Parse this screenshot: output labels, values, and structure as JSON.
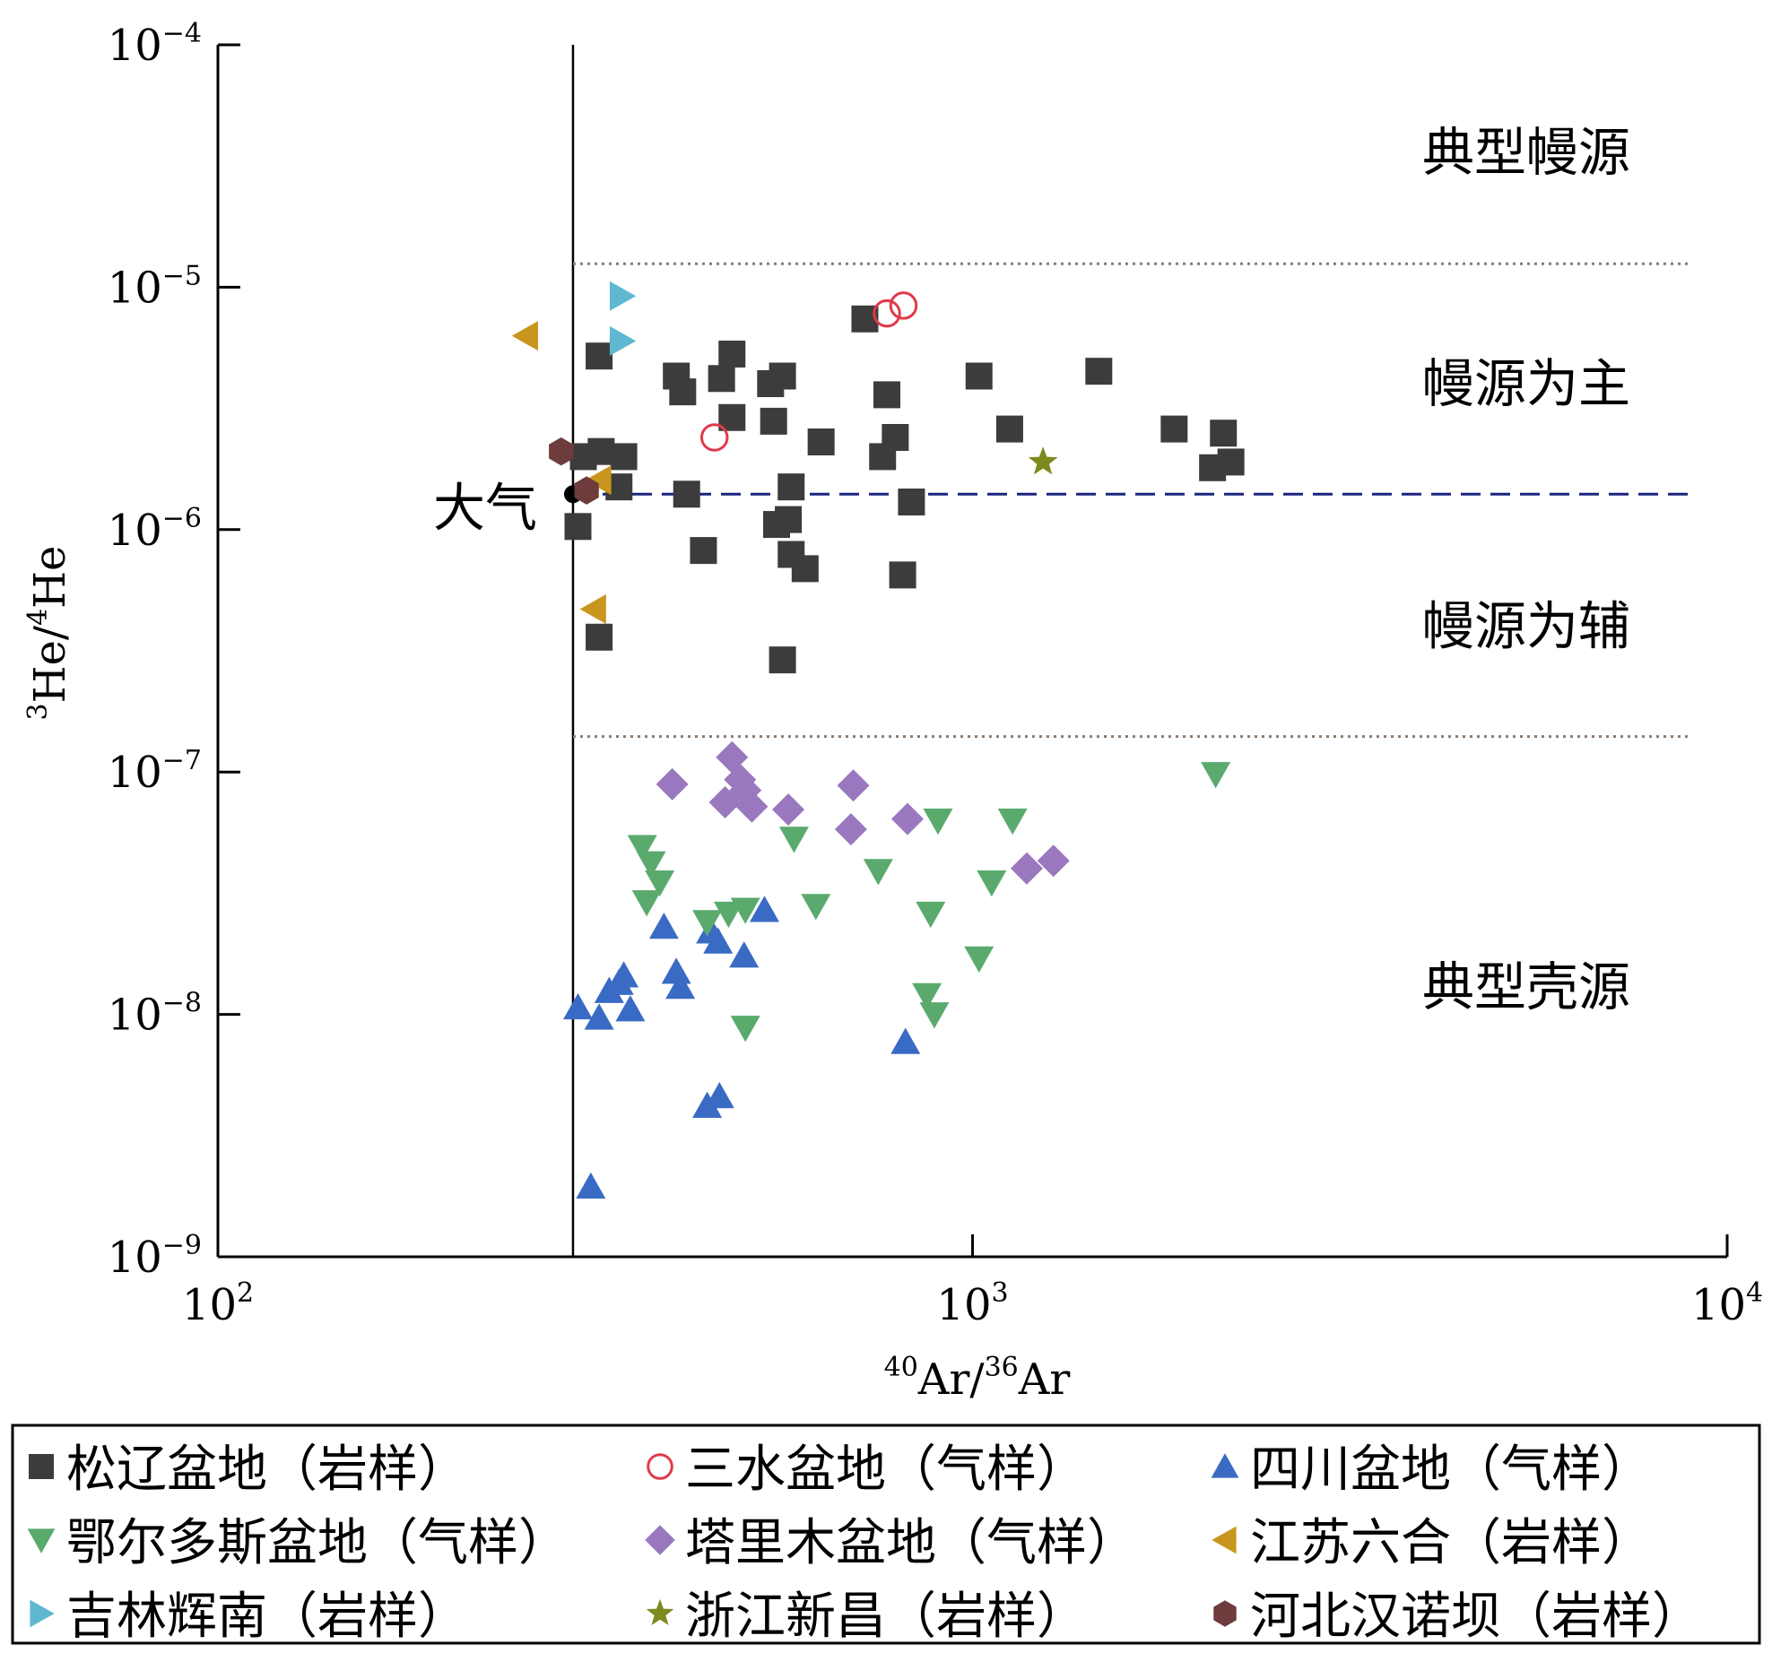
{
  "chart_data": {
    "type": "scatter",
    "x_axis": {
      "scale": "log",
      "range": [
        100,
        10000
      ],
      "tick_values": [
        100,
        1000,
        10000
      ],
      "tick_labels": [
        {
          "base": "10",
          "exp": "2"
        },
        {
          "base": "10",
          "exp": "3"
        },
        {
          "base": "10",
          "exp": "4"
        }
      ],
      "label": {
        "sup1": "40",
        "t1": "Ar/",
        "sup2": "36",
        "t2": "Ar"
      }
    },
    "y_axis": {
      "scale": "log",
      "range": [
        1e-09,
        0.0001
      ],
      "tick_values": [
        1e-09,
        1e-08,
        1e-07,
        1e-06,
        1e-05,
        0.0001
      ],
      "tick_labels": [
        {
          "base": "10",
          "exp": "−9"
        },
        {
          "base": "10",
          "exp": "−8"
        },
        {
          "base": "10",
          "exp": "−7"
        },
        {
          "base": "10",
          "exp": "−6"
        },
        {
          "base": "10",
          "exp": "−5"
        },
        {
          "base": "10",
          "exp": "−4"
        }
      ],
      "label": {
        "sup1": "3",
        "t1": "He/",
        "sup2": "4",
        "t2": "He"
      }
    },
    "reference_lines": {
      "air_vertical_x": 295.5,
      "upper_dotted_y": 1.25e-05,
      "lower_dotted_y": 1.4e-07,
      "air_dashed_y": 1.4e-06,
      "air_point": {
        "x": 295.5,
        "y": 1.4e-06,
        "label": "大气"
      }
    },
    "regions": [
      "典型幔源",
      "幔源为主",
      "幔源为辅",
      "典型壳源"
    ],
    "grid": false,
    "legend_position": "bottom",
    "series": [
      {
        "name": "松辽盆地（岩样）",
        "marker": "square",
        "color": "#3c3c3c",
        "points": [
          [
            320,
            5.2e-06
          ],
          [
            405,
            4.3e-06
          ],
          [
            413,
            3.7e-06
          ],
          [
            465,
            4.2e-06
          ],
          [
            480,
            5.3e-06
          ],
          [
            540,
            4e-06
          ],
          [
            560,
            4.3e-06
          ],
          [
            480,
            2.9e-06
          ],
          [
            545,
            2.8e-06
          ],
          [
            630,
            2.3e-06
          ],
          [
            720,
            7.4e-06
          ],
          [
            770,
            3.6e-06
          ],
          [
            790,
            2.4e-06
          ],
          [
            760,
            2e-06
          ],
          [
            1020,
            4.3e-06
          ],
          [
            1120,
            2.6e-06
          ],
          [
            1470,
            4.5e-06
          ],
          [
            1850,
            2.6e-06
          ],
          [
            2150,
            2.5e-06
          ],
          [
            2200,
            1.9e-06
          ],
          [
            2080,
            1.8e-06
          ],
          [
            305,
            2e-06
          ],
          [
            322,
            2.1e-06
          ],
          [
            345,
            2e-06
          ],
          [
            340,
            1.5e-06
          ],
          [
            418,
            1.4e-06
          ],
          [
            440,
            8.2e-07
          ],
          [
            575,
            1.5e-06
          ],
          [
            550,
            1.05e-06
          ],
          [
            570,
            1.1e-06
          ],
          [
            575,
            7.9e-07
          ],
          [
            600,
            6.9e-07
          ],
          [
            830,
            1.3e-06
          ],
          [
            808,
            6.5e-07
          ],
          [
            300,
            1.03e-06
          ],
          [
            320,
            3.6e-07
          ],
          [
            560,
            2.9e-07
          ]
        ]
      },
      {
        "name": "三水盆地（气样）",
        "marker": "circle-open",
        "color": "#e03a4a",
        "points": [
          [
            770,
            7.8e-06
          ],
          [
            810,
            8.4e-06
          ],
          [
            455,
            2.4e-06
          ]
        ]
      },
      {
        "name": "四川盆地（气样）",
        "marker": "triangle-up",
        "color": "#3a6bc4",
        "points": [
          [
            300,
            1.07e-08
          ],
          [
            330,
            1.25e-08
          ],
          [
            320,
            9.7e-09
          ],
          [
            345,
            1.45e-08
          ],
          [
            340,
            1.35e-08
          ],
          [
            352,
            1.05e-08
          ],
          [
            390,
            2.3e-08
          ],
          [
            405,
            1.5e-08
          ],
          [
            410,
            1.3e-08
          ],
          [
            450,
            2.2e-08
          ],
          [
            460,
            2e-08
          ],
          [
            498,
            1.75e-08
          ],
          [
            530,
            2.7e-08
          ],
          [
            815,
            7.7e-09
          ],
          [
            445,
            4.2e-09
          ],
          [
            462,
            4.6e-09
          ],
          [
            312,
            1.95e-09
          ]
        ]
      },
      {
        "name": "鄂尔多斯盆地（气样）",
        "marker": "triangle-down",
        "color": "#5aaa6e",
        "points": [
          [
            365,
            4.9e-08
          ],
          [
            375,
            4.2e-08
          ],
          [
            385,
            3.5e-08
          ],
          [
            370,
            2.9e-08
          ],
          [
            445,
            2.4e-08
          ],
          [
            475,
            2.6e-08
          ],
          [
            500,
            2.7e-08
          ],
          [
            580,
            5.3e-08
          ],
          [
            620,
            2.8e-08
          ],
          [
            750,
            3.9e-08
          ],
          [
            900,
            6.3e-08
          ],
          [
            880,
            2.6e-08
          ],
          [
            1060,
            3.5e-08
          ],
          [
            1130,
            6.3e-08
          ],
          [
            1020,
            1.7e-08
          ],
          [
            870,
            1.2e-08
          ],
          [
            890,
            1e-08
          ],
          [
            500,
            8.8e-09
          ],
          [
            2100,
            9.8e-08
          ]
        ]
      },
      {
        "name": "塔里木盆地（气样）",
        "marker": "diamond",
        "color": "#9a78bf",
        "points": [
          [
            400,
            8.9e-08
          ],
          [
            470,
            7.5e-08
          ],
          [
            480,
            1.15e-07
          ],
          [
            492,
            9.3e-08
          ],
          [
            500,
            8.4e-08
          ],
          [
            510,
            7.2e-08
          ],
          [
            570,
            7e-08
          ],
          [
            690,
            5.8e-08
          ],
          [
            695,
            8.8e-08
          ],
          [
            820,
            6.4e-08
          ],
          [
            1180,
            4e-08
          ],
          [
            1280,
            4.3e-08
          ]
        ]
      },
      {
        "name": "江苏六合（岩样）",
        "marker": "triangle-left",
        "color": "#c8961e",
        "points": [
          [
            256,
            6.3e-06
          ],
          [
            320,
            1.6e-06
          ],
          [
            315,
            4.7e-07
          ]
        ]
      },
      {
        "name": "吉林辉南（岩样）",
        "marker": "triangle-right",
        "color": "#5fb8d0",
        "points": [
          [
            343,
            9.2e-06
          ],
          [
            343,
            6e-06
          ]
        ]
      },
      {
        "name": "浙江新昌（岩样）",
        "marker": "star",
        "color": "#7e8a1e",
        "points": [
          [
            1240,
            1.9e-06
          ]
        ]
      },
      {
        "name": "河北汉诺坝（岩样）",
        "marker": "hexagon",
        "color": "#6e3c3c",
        "points": [
          [
            285,
            2.1e-06
          ],
          [
            308,
            1.45e-06
          ]
        ]
      }
    ]
  }
}
